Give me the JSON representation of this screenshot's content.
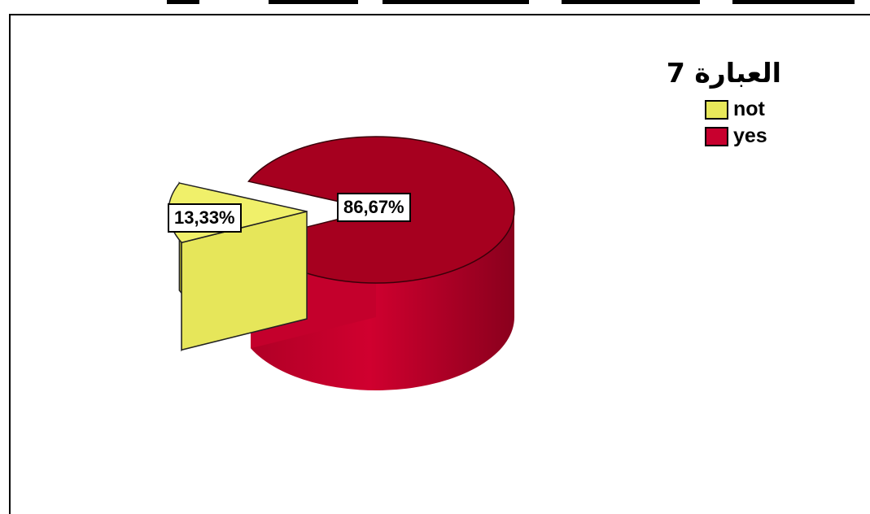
{
  "chart_data": {
    "type": "pie",
    "title": "العبارة 7",
    "categories": [
      "not",
      "yes"
    ],
    "values": [
      13.33,
      86.67
    ],
    "data_labels": [
      "13,33%",
      "86,67%"
    ],
    "colors": [
      "#e8e85a",
      "#c8002e"
    ],
    "legend_placement": "top-right",
    "three_d": true,
    "exploded_slice": "not"
  }
}
